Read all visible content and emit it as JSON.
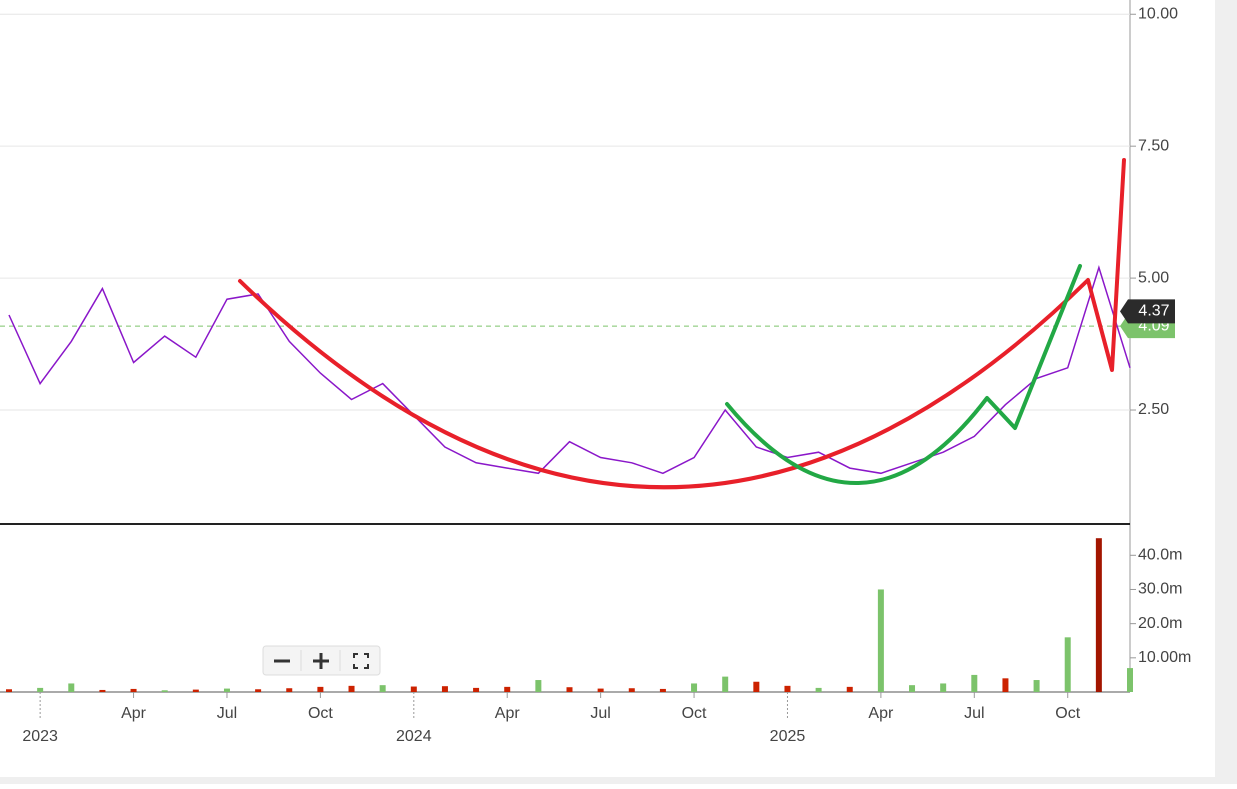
{
  "chart_data": [
    {
      "type": "line",
      "x": [
        "2022-12",
        "2023-01",
        "2023-02",
        "2023-03",
        "2023-04",
        "2023-05",
        "2023-06",
        "2023-07",
        "2023-08",
        "2023-09",
        "2023-10",
        "2023-11",
        "2023-12",
        "2024-01",
        "2024-02",
        "2024-03",
        "2024-04",
        "2024-05",
        "2024-06",
        "2024-07",
        "2024-08",
        "2024-09",
        "2024-10",
        "2024-11",
        "2024-12",
        "2025-01",
        "2025-02",
        "2025-03",
        "2025-04",
        "2025-05",
        "2025-06",
        "2025-07",
        "2025-08",
        "2025-09",
        "2025-10",
        "2025-11",
        "2025-12"
      ],
      "series": [
        {
          "color": "#8a17c9",
          "values": [
            4.3,
            3.0,
            3.8,
            4.8,
            3.4,
            3.9,
            3.5,
            4.6,
            4.7,
            3.8,
            3.2,
            2.7,
            3.0,
            2.4,
            1.8,
            1.5,
            1.4,
            1.3,
            1.9,
            1.6,
            1.5,
            1.3,
            1.6,
            2.5,
            1.8,
            1.6,
            1.7,
            1.4,
            1.3,
            1.5,
            1.7,
            2.0,
            2.6,
            3.1,
            3.3,
            5.2,
            3.3
          ]
        }
      ],
      "xlim": [
        "2022-12",
        "2025-12"
      ],
      "xticks": [
        {
          "value": "2023-01",
          "label": "2023"
        },
        {
          "value": "2023-04",
          "label": "Apr"
        },
        {
          "value": "2023-07",
          "label": "Jul"
        },
        {
          "value": "2023-10",
          "label": "Oct"
        },
        {
          "value": "2024-01",
          "label": "2024"
        },
        {
          "value": "2024-04",
          "label": "Apr"
        },
        {
          "value": "2024-07",
          "label": "Jul"
        },
        {
          "value": "2024-10",
          "label": "Oct"
        },
        {
          "value": "2025-01",
          "label": "2025"
        },
        {
          "value": "2025-04",
          "label": "Apr"
        },
        {
          "value": "2025-07",
          "label": "Jul"
        },
        {
          "value": "2025-10",
          "label": "Oct"
        }
      ],
      "ylim": [
        0.34,
        10.27
      ],
      "yticks": [
        {
          "value": 10,
          "label": "10.00"
        },
        {
          "value": 7.5,
          "label": "7.50"
        },
        {
          "value": 5,
          "label": "5.00"
        },
        {
          "value": 2.5,
          "label": "2.50"
        }
      ],
      "grid": true,
      "last_price": 4.37,
      "reference_price": 4.09,
      "reference_color": "#7cc36b"
    },
    {
      "type": "bar",
      "x": [
        "2022-12",
        "2023-01",
        "2023-02",
        "2023-03",
        "2023-04",
        "2023-05",
        "2023-06",
        "2023-07",
        "2023-08",
        "2023-09",
        "2023-10",
        "2023-11",
        "2023-12",
        "2024-01",
        "2024-02",
        "2024-03",
        "2024-04",
        "2024-05",
        "2024-06",
        "2024-07",
        "2024-08",
        "2024-09",
        "2024-10",
        "2024-11",
        "2024-12",
        "2025-01",
        "2025-02",
        "2025-03",
        "2025-04",
        "2025-05",
        "2025-06",
        "2025-07",
        "2025-08",
        "2025-09",
        "2025-10",
        "2025-11",
        "2025-12"
      ],
      "values": [
        0.8,
        1.2,
        2.5,
        0.6,
        0.9,
        0.5,
        0.7,
        1.0,
        0.8,
        1.1,
        1.5,
        1.8,
        2.0,
        1.6,
        1.7,
        1.2,
        1.5,
        3.5,
        1.4,
        1.0,
        1.1,
        0.9,
        2.5,
        4.5,
        3.0,
        1.8,
        1.2,
        1.5,
        30,
        2.0,
        2.5,
        5.0,
        4.0,
        3.5,
        16,
        45,
        7.0
      ],
      "colors": [
        "#cc2200",
        "#7cc36b",
        "#7cc36b",
        "#cc2200",
        "#cc2200",
        "#7cc36b",
        "#cc2200",
        "#7cc36b",
        "#cc2200",
        "#cc2200",
        "#cc2200",
        "#cc2200",
        "#7cc36b",
        "#cc2200",
        "#cc2200",
        "#cc2200",
        "#cc2200",
        "#7cc36b",
        "#cc2200",
        "#cc2200",
        "#cc2200",
        "#cc2200",
        "#7cc36b",
        "#7cc36b",
        "#cc2200",
        "#cc2200",
        "#7cc36b",
        "#cc2200",
        "#7cc36b",
        "#7cc36b",
        "#7cc36b",
        "#7cc36b",
        "#cc2200",
        "#7cc36b",
        "#7cc36b",
        "#a31500",
        "#7cc36b"
      ],
      "ylim": [
        0,
        47.4
      ],
      "yticks": [
        {
          "value": 10,
          "label": "10.00m"
        },
        {
          "value": 20,
          "label": "20.0m"
        },
        {
          "value": 30,
          "label": "30.0m"
        },
        {
          "value": 40,
          "label": "40.0m"
        }
      ]
    }
  ]
}
